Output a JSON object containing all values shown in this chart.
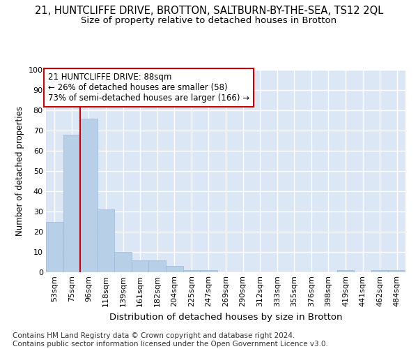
{
  "title": "21, HUNTCLIFFE DRIVE, BROTTON, SALTBURN-BY-THE-SEA, TS12 2QL",
  "subtitle": "Size of property relative to detached houses in Brotton",
  "xlabel": "Distribution of detached houses by size in Brotton",
  "ylabel": "Number of detached properties",
  "categories": [
    "53sqm",
    "75sqm",
    "96sqm",
    "118sqm",
    "139sqm",
    "161sqm",
    "182sqm",
    "204sqm",
    "225sqm",
    "247sqm",
    "269sqm",
    "290sqm",
    "312sqm",
    "333sqm",
    "355sqm",
    "376sqm",
    "398sqm",
    "419sqm",
    "441sqm",
    "462sqm",
    "484sqm"
  ],
  "values": [
    25,
    68,
    76,
    31,
    10,
    6,
    6,
    3,
    1,
    1,
    0,
    0,
    0,
    0,
    0,
    0,
    0,
    1,
    0,
    1,
    1
  ],
  "bar_color": "#b8cfe8",
  "bar_edge_color": "#9ab8d8",
  "vline_color": "#cc0000",
  "vline_x": 1.5,
  "annotation_box_text": "21 HUNTCLIFFE DRIVE: 88sqm\n← 26% of detached houses are smaller (58)\n73% of semi-detached houses are larger (166) →",
  "annotation_box_color": "#cc0000",
  "annotation_box_facecolor": "white",
  "ylim": [
    0,
    100
  ],
  "yticks": [
    0,
    10,
    20,
    30,
    40,
    50,
    60,
    70,
    80,
    90,
    100
  ],
  "background_color": "#dce7f5",
  "grid_color": "white",
  "footer": "Contains HM Land Registry data © Crown copyright and database right 2024.\nContains public sector information licensed under the Open Government Licence v3.0.",
  "title_fontsize": 10.5,
  "subtitle_fontsize": 9.5,
  "xlabel_fontsize": 9.5,
  "ylabel_fontsize": 8.5,
  "tick_fontsize": 8,
  "annotation_fontsize": 8.5,
  "footer_fontsize": 7.5
}
